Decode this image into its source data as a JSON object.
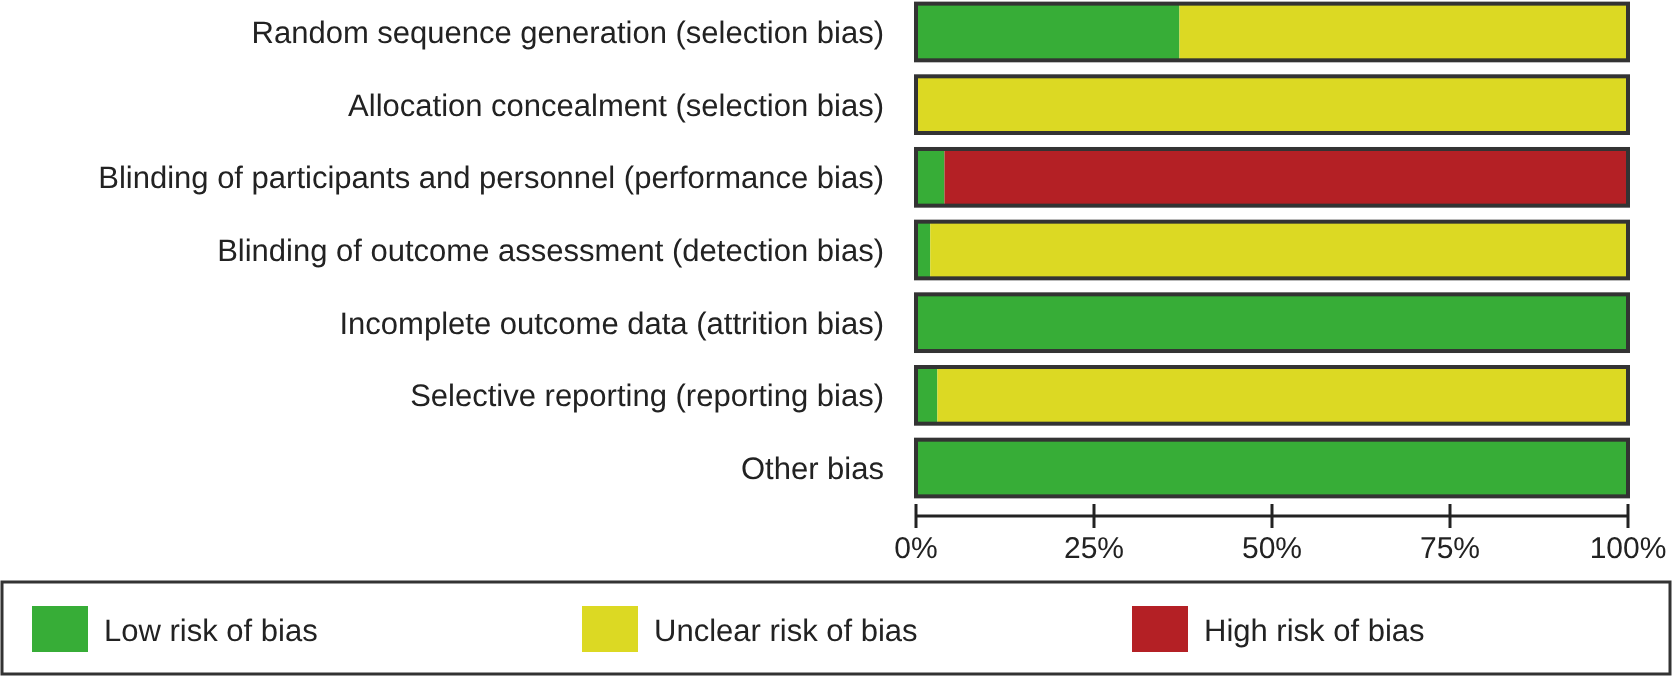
{
  "chart_data": {
    "type": "bar",
    "orientation": "horizontal",
    "stacked": true,
    "categories": [
      "Random sequence generation (selection bias)",
      "Allocation concealment (selection bias)",
      "Blinding of participants and personnel (performance bias)",
      "Blinding of outcome assessment (detection bias)",
      "Incomplete outcome data (attrition bias)",
      "Selective reporting (reporting bias)",
      "Other bias"
    ],
    "series": [
      {
        "name": "Low risk of bias",
        "color": "#37ad37",
        "values": [
          37,
          0,
          4,
          2,
          100,
          3,
          100
        ]
      },
      {
        "name": "Unclear risk of bias",
        "color": "#dcd923",
        "values": [
          63,
          100,
          0,
          98,
          0,
          97,
          0
        ]
      },
      {
        "name": "High risk of bias",
        "color": "#b42025",
        "values": [
          0,
          0,
          96,
          0,
          0,
          0,
          0
        ]
      }
    ],
    "xlim": [
      0,
      100
    ],
    "xticks": [
      {
        "value": 0,
        "label": "0%"
      },
      {
        "value": 25,
        "label": "25%"
      },
      {
        "value": 50,
        "label": "50%"
      },
      {
        "value": 75,
        "label": "75%"
      },
      {
        "value": 100,
        "label": "100%"
      }
    ],
    "grid": false,
    "legend": "bottom"
  }
}
